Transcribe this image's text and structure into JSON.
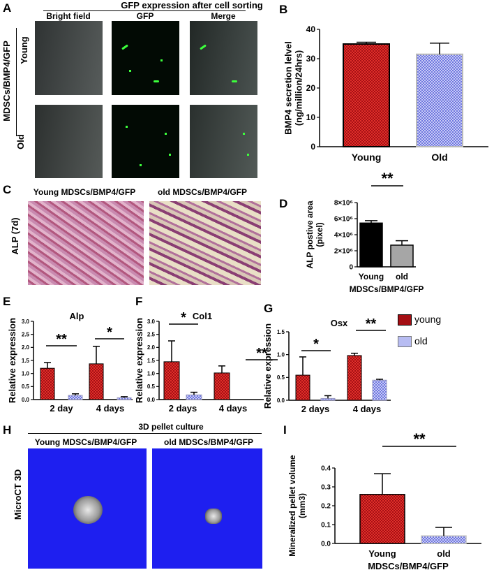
{
  "panels": {
    "A": {
      "letter": "A",
      "title": "GFP expression after cell sorting",
      "columns": [
        "Bright field",
        "GFP",
        "Merge"
      ],
      "group_label": "MDSCs/BMP4/GFP",
      "rows": [
        "Young",
        "Old"
      ]
    },
    "B": {
      "letter": "B"
    },
    "C": {
      "letter": "C",
      "titles": [
        "Young MDSCs/BMP4/GFP",
        "old MDSCs/BMP4/GFP"
      ],
      "side_label": "ALP (7d)"
    },
    "D": {
      "letter": "D"
    },
    "E": {
      "letter": "E"
    },
    "F": {
      "letter": "F"
    },
    "G": {
      "letter": "G"
    },
    "legend": {
      "young": "young",
      "old": "old"
    },
    "H": {
      "letter": "H",
      "title": "3D pellet culture",
      "titles": [
        "Young MDSCs/BMP4/GFP",
        "old MDSCs/BMP4/GFP"
      ],
      "side_label": "MicroCT 3D"
    },
    "I": {
      "letter": "I"
    }
  },
  "colors": {
    "young": "#a50f14",
    "old": "#6f77df",
    "d_young": "#000000",
    "d_old": "#a6a6a6"
  },
  "chart_data": [
    {
      "id": "B",
      "type": "bar",
      "categories": [
        "Young",
        "Old"
      ],
      "values": [
        35.0,
        31.5
      ],
      "errors": [
        0.6,
        3.8
      ],
      "ylabel": [
        "BMP4 secretion lelvel",
        "(ng/million/24hrs)"
      ],
      "ylim": [
        0,
        40
      ],
      "yticks": [
        0,
        10,
        20,
        30,
        40
      ],
      "yticklabels": [
        "0",
        "10",
        "20",
        "30",
        "40"
      ]
    },
    {
      "id": "D",
      "type": "bar",
      "categories": [
        "Young",
        "old"
      ],
      "values": [
        5450000,
        2700000
      ],
      "errors": [
        300000,
        550000
      ],
      "ylabel": [
        "ALP postive area",
        "(pixel)"
      ],
      "xlabel": "MDSCs/BMP4/GFP",
      "ylim": [
        0,
        8000000
      ],
      "yticks": [
        0,
        2000000,
        4000000,
        6000000,
        8000000
      ],
      "yticklabels": [
        "0",
        "2×10⁶",
        "4×10⁶",
        "6×10⁶",
        "8×10⁶"
      ],
      "annotations": [
        "**"
      ]
    },
    {
      "id": "E",
      "type": "bar",
      "title": "Alp",
      "categories": [
        "2 day",
        "4 days"
      ],
      "series": [
        {
          "name": "young",
          "values": [
            1.2,
            1.37
          ],
          "errors": [
            0.22,
            0.67
          ]
        },
        {
          "name": "old",
          "values": [
            0.16,
            0.07
          ],
          "errors": [
            0.06,
            0.04
          ]
        }
      ],
      "ylabel": "Relative expression",
      "ylim": [
        0,
        3.0
      ],
      "yticks": [
        0,
        0.5,
        1,
        1.5,
        2,
        2.5,
        3
      ],
      "yticklabels": [
        "0.0",
        "0.5",
        "1.0",
        "1.5",
        "2.0",
        "2.5",
        "3.0"
      ],
      "annotations": [
        "**",
        "*"
      ]
    },
    {
      "id": "F",
      "type": "bar",
      "title": "Col1",
      "categories": [
        "2 days",
        "4 days"
      ],
      "series": [
        {
          "name": "young",
          "values": [
            1.45,
            1.02
          ],
          "errors": [
            0.8,
            0.27
          ]
        },
        {
          "name": "old",
          "values": [
            0.18,
            0.0
          ],
          "errors": [
            0.1,
            0.0
          ]
        }
      ],
      "ylabel": "Relative expression",
      "ylim": [
        0,
        3.0
      ],
      "yticks": [
        0,
        0.5,
        1,
        1.5,
        2,
        2.5,
        3
      ],
      "yticklabels": [
        "0.0",
        "0.5",
        "1.0",
        "1.5",
        "2.0",
        "2.5",
        "3.0"
      ],
      "annotations": [
        "*",
        "**"
      ]
    },
    {
      "id": "G",
      "type": "bar",
      "title": "Osx",
      "categories": [
        "2 days",
        "4 days"
      ],
      "series": [
        {
          "name": "young",
          "values": [
            0.55,
            0.98
          ],
          "errors": [
            0.4,
            0.05
          ]
        },
        {
          "name": "old",
          "values": [
            0.04,
            0.44
          ],
          "errors": [
            0.06,
            0.02
          ]
        }
      ],
      "ylabel": "Relative expression",
      "ylim": [
        0,
        1.5
      ],
      "yticks": [
        0,
        0.5,
        1,
        1.5
      ],
      "yticklabels": [
        "0.0",
        "0.5",
        "1.0",
        "1.5"
      ],
      "annotations": [
        "*",
        "**"
      ]
    },
    {
      "id": "I",
      "type": "bar",
      "categories": [
        "Young",
        "old"
      ],
      "values": [
        0.26,
        0.04
      ],
      "errors": [
        0.11,
        0.045
      ],
      "ylabel": [
        "Mineralized pellet volume",
        "(mm3)"
      ],
      "xlabel": "MDSCs/BMP4/GFP",
      "ylim": [
        0,
        0.4
      ],
      "yticks": [
        0,
        0.1,
        0.2,
        0.3,
        0.4
      ],
      "yticklabels": [
        "0.0",
        "0.1",
        "0.2",
        "0.3",
        "0.4"
      ],
      "annotations": [
        "**"
      ]
    }
  ]
}
